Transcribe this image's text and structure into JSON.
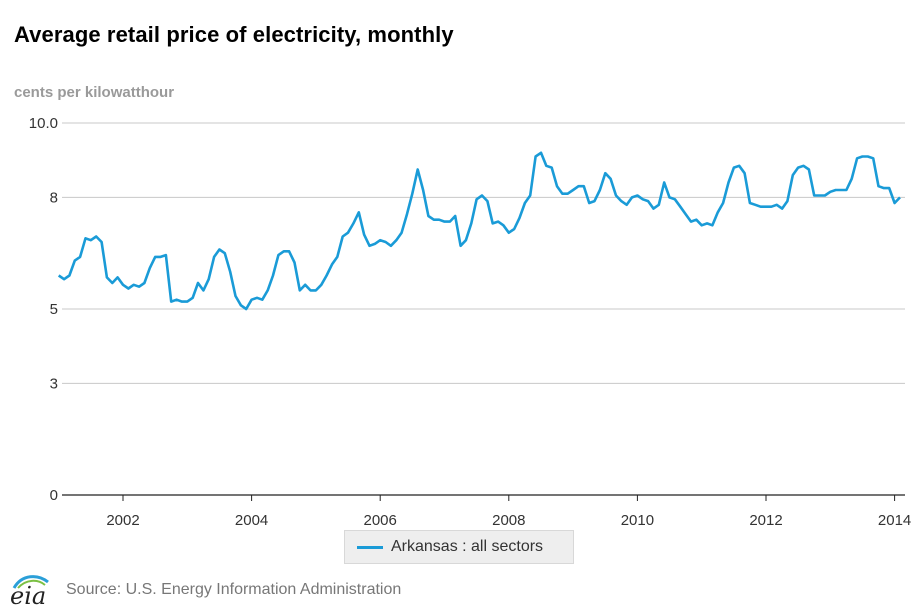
{
  "title": "Average retail price of electricity, monthly",
  "unit_label": "cents per kilowatthour",
  "legend": {
    "label": "Arkansas : all sectors",
    "color": "#1a9bd7"
  },
  "source": "Source: U.S. Energy Information Administration",
  "logo_text": "eia",
  "chart_data": {
    "type": "line",
    "x_start": "2001-01",
    "x_ticks": [
      "2002",
      "2004",
      "2006",
      "2008",
      "2010",
      "2012",
      "2014"
    ],
    "y_ticks": [
      "0",
      "3",
      "5",
      "8",
      "10.0"
    ],
    "ylim": [
      0,
      10
    ],
    "series": [
      {
        "name": "Arkansas : all sectors",
        "color": "#1a9bd7",
        "values": [
          5.9,
          5.8,
          5.9,
          6.3,
          6.4,
          6.9,
          6.85,
          6.95,
          6.8,
          5.85,
          5.7,
          5.85,
          5.65,
          5.55,
          5.65,
          5.6,
          5.7,
          6.1,
          6.4,
          6.4,
          6.45,
          5.2,
          5.25,
          5.2,
          5.2,
          5.3,
          5.7,
          5.5,
          5.8,
          6.4,
          6.6,
          6.5,
          6.0,
          5.35,
          5.1,
          5.0,
          5.25,
          5.3,
          5.25,
          5.5,
          5.9,
          6.45,
          6.55,
          6.55,
          6.25,
          5.5,
          5.65,
          5.5,
          5.5,
          5.65,
          5.9,
          6.2,
          6.4,
          6.95,
          7.05,
          7.3,
          7.6,
          7.0,
          6.7,
          6.75,
          6.85,
          6.8,
          6.7,
          6.85,
          7.05,
          7.55,
          8.1,
          8.75,
          8.2,
          7.5,
          7.4,
          7.4,
          7.35,
          7.35,
          7.5,
          6.7,
          6.85,
          7.3,
          7.95,
          8.05,
          7.9,
          7.3,
          7.35,
          7.25,
          7.05,
          7.15,
          7.45,
          7.85,
          8.05,
          9.1,
          9.2,
          8.85,
          8.8,
          8.3,
          8.1,
          8.1,
          8.2,
          8.3,
          8.3,
          7.85,
          7.9,
          8.2,
          8.65,
          8.5,
          8.05,
          7.9,
          7.8,
          8.0,
          8.05,
          7.95,
          7.9,
          7.7,
          7.8,
          8.4,
          8.0,
          7.95,
          7.75,
          7.55,
          7.35,
          7.4,
          7.25,
          7.3,
          7.25,
          7.6,
          7.85,
          8.4,
          8.8,
          8.85,
          8.65,
          7.85,
          7.8,
          7.75,
          7.75,
          7.75,
          7.8,
          7.7,
          7.9,
          8.6,
          8.8,
          8.85,
          8.75,
          8.05,
          8.05,
          8.05,
          8.15,
          8.2,
          8.2,
          8.2,
          8.5,
          9.05,
          9.1,
          9.1,
          9.05,
          8.3,
          8.25,
          8.25,
          7.85,
          8.0
        ]
      }
    ]
  }
}
